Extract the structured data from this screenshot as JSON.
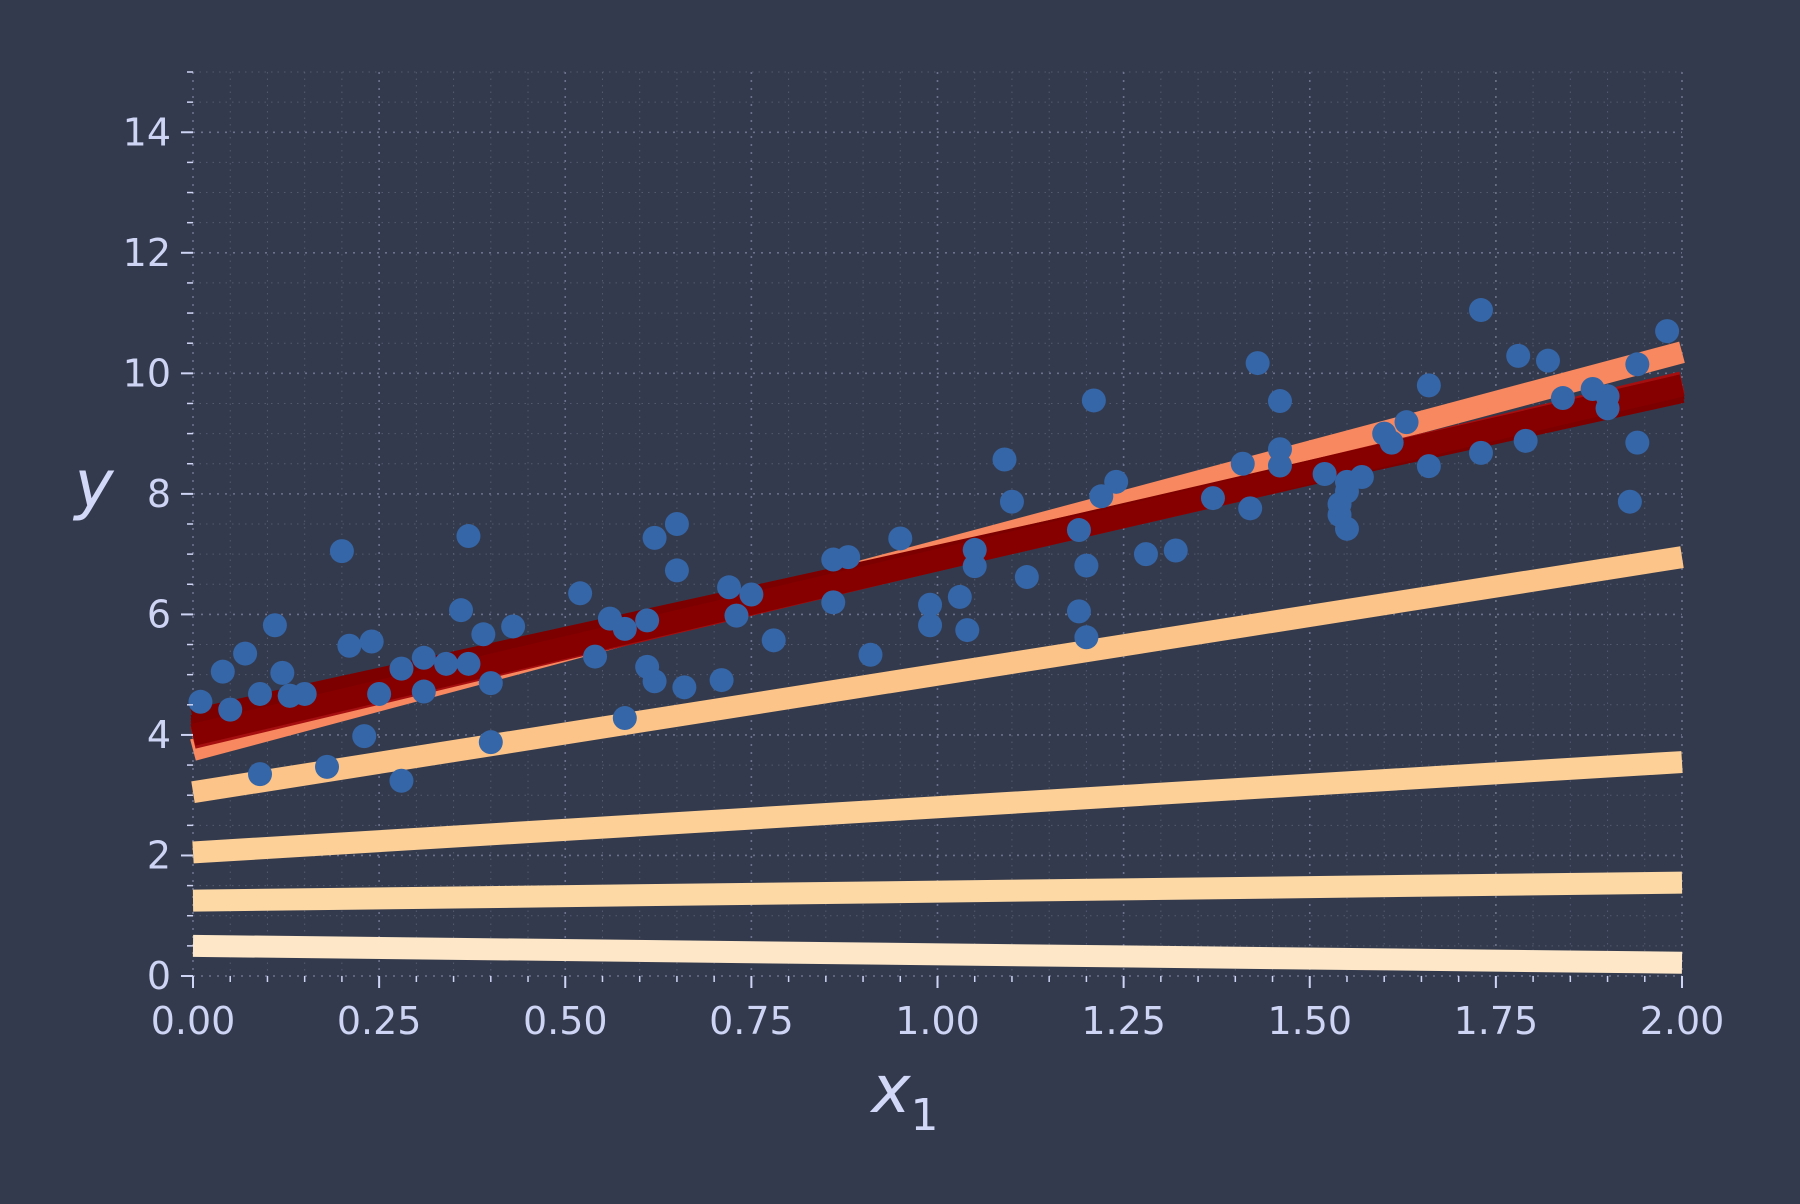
{
  "chart_data": {
    "type": "scatter",
    "title": "",
    "xlabel": "x",
    "xlabel_subscript": "1",
    "ylabel": "y",
    "xlim": [
      0,
      2
    ],
    "ylim": [
      0,
      15
    ],
    "x_ticks": [
      "0.00",
      "0.25",
      "0.50",
      "0.75",
      "1.00",
      "1.25",
      "1.50",
      "1.75",
      "2.00"
    ],
    "x_tick_values": [
      0,
      0.25,
      0.5,
      0.75,
      1.0,
      1.25,
      1.5,
      1.75,
      2.0
    ],
    "y_ticks": [
      "0",
      "2",
      "4",
      "6",
      "8",
      "10",
      "12",
      "14"
    ],
    "y_tick_values": [
      0,
      2,
      4,
      6,
      8,
      10,
      12,
      14
    ],
    "grid": true,
    "grid_style": "dotted",
    "legend": "none",
    "colors": {
      "background": "#343a4d",
      "points": "#3566a8",
      "grid": "#7b819b",
      "tick_text": "#cdd4f4",
      "axis_text": "#d2d8f8"
    },
    "points": {
      "color": "#3566a8",
      "x": [
        0.01,
        0.04,
        0.05,
        0.07,
        0.09,
        0.09,
        0.11,
        0.12,
        0.13,
        0.13,
        0.15,
        0.18,
        0.2,
        0.21,
        0.23,
        0.24,
        0.25,
        0.28,
        0.28,
        0.31,
        0.31,
        0.34,
        0.36,
        0.37,
        0.37,
        0.39,
        0.4,
        0.4,
        0.43,
        0.52,
        0.54,
        0.56,
        0.58,
        0.58,
        0.61,
        0.61,
        0.62,
        0.62,
        0.65,
        0.65,
        0.66,
        0.71,
        0.72,
        0.73,
        0.75,
        0.78,
        0.86,
        0.86,
        0.88,
        0.91,
        0.95,
        0.99,
        0.99,
        1.03,
        1.04,
        1.05,
        1.05,
        1.09,
        1.1,
        1.12,
        1.19,
        1.19,
        1.2,
        1.2,
        1.21,
        1.22,
        1.24,
        1.28,
        1.32,
        1.37,
        1.41,
        1.42,
        1.43,
        1.46,
        1.46,
        1.46,
        1.52,
        1.54,
        1.54,
        1.55,
        1.55,
        1.55,
        1.57,
        1.6,
        1.61,
        1.63,
        1.66,
        1.66,
        1.73,
        1.73,
        1.78,
        1.79,
        1.82,
        1.84,
        1.88,
        1.9,
        1.9,
        1.93,
        1.94,
        1.94,
        1.98
      ],
      "y": [
        4.55,
        5.05,
        4.42,
        5.35,
        3.35,
        4.68,
        5.82,
        5.03,
        4.65,
        4.65,
        4.68,
        3.47,
        7.05,
        5.48,
        3.98,
        5.55,
        4.68,
        3.24,
        5.1,
        4.72,
        5.28,
        5.18,
        6.07,
        5.18,
        7.3,
        5.67,
        3.88,
        4.86,
        5.8,
        6.35,
        5.3,
        5.93,
        4.28,
        5.76,
        5.9,
        5.13,
        4.89,
        7.27,
        7.5,
        6.73,
        4.79,
        4.91,
        6.45,
        5.98,
        6.33,
        5.57,
        6.91,
        6.2,
        6.95,
        5.33,
        7.26,
        6.16,
        5.82,
        6.29,
        5.74,
        7.07,
        6.8,
        8.57,
        7.87,
        6.62,
        7.4,
        6.05,
        5.62,
        6.81,
        9.55,
        7.96,
        8.2,
        7.0,
        7.06,
        7.93,
        8.5,
        7.76,
        10.17,
        9.54,
        8.74,
        8.47,
        8.33,
        7.83,
        7.65,
        7.42,
        8.04,
        8.2,
        8.28,
        9.0,
        8.85,
        9.19,
        9.8,
        8.46,
        11.05,
        8.68,
        10.29,
        8.88,
        10.21,
        9.59,
        9.74,
        9.62,
        9.42,
        7.87,
        8.85,
        10.15,
        10.7
      ]
    },
    "lines": [
      {
        "intercept": 0.5,
        "slope": -0.14,
        "color": "#fde7c8"
      },
      {
        "intercept": 1.25,
        "slope": 0.15,
        "color": "#fdd9a6"
      },
      {
        "intercept": 2.05,
        "slope": 0.75,
        "color": "#fdd098"
      },
      {
        "intercept": 3.05,
        "slope": 1.95,
        "color": "#fcc488"
      },
      {
        "intercept": 3.75,
        "slope": 3.3,
        "color": "#f7885f"
      },
      {
        "intercept": 3.95,
        "slope": 2.95,
        "color": "#a50f10"
      },
      {
        "intercept": 4.05,
        "slope": 2.85,
        "color": "#8c0000"
      },
      {
        "intercept": 4.15,
        "slope": 2.8,
        "color": "#7a0000"
      },
      {
        "intercept": 4.1,
        "slope": 2.85,
        "color": "#800000"
      },
      {
        "intercept": 4.25,
        "slope": 2.72,
        "color": "#7d0000"
      },
      {
        "intercept": 4.0,
        "slope": 2.9,
        "color": "#870000"
      }
    ]
  }
}
